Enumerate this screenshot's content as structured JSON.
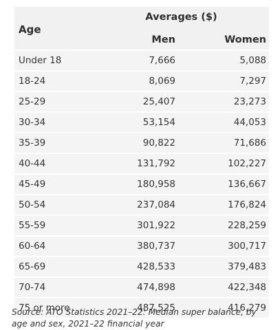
{
  "header": {
    "age_label": "Age",
    "averages_label": "Averages ($)",
    "men_label": "Men",
    "women_label": "Women"
  },
  "rows": [
    {
      "age": "Under 18",
      "men": "7,666",
      "women": "5,088"
    },
    {
      "age": "18-24",
      "men": "8,069",
      "women": "7,297"
    },
    {
      "age": "25-29",
      "men": "25,407",
      "women": "23,273"
    },
    {
      "age": "30-34",
      "men": "53,154",
      "women": "44,053"
    },
    {
      "age": "35-39",
      "men": "90,822",
      "women": "71,686"
    },
    {
      "age": "40-44",
      "men": "131,792",
      "women": "102,227"
    },
    {
      "age": "45-49",
      "men": "180,958",
      "women": "136,667"
    },
    {
      "age": "50-54",
      "men": "237,084",
      "women": "176,824"
    },
    {
      "age": "55-59",
      "men": "301,922",
      "women": "228,259"
    },
    {
      "age": "60-64",
      "men": "380,737",
      "women": "300,717"
    },
    {
      "age": "65-69",
      "men": "428,533",
      "women": "379,483"
    },
    {
      "age": "70-74",
      "men": "474,898",
      "women": "422,348"
    },
    {
      "age": "75 or more",
      "men": "487,525",
      "women": "416,279"
    }
  ],
  "source": "Source: ATO Statistics 2021–22: Median super balance, by age and sex, 2021–22 financial year"
}
